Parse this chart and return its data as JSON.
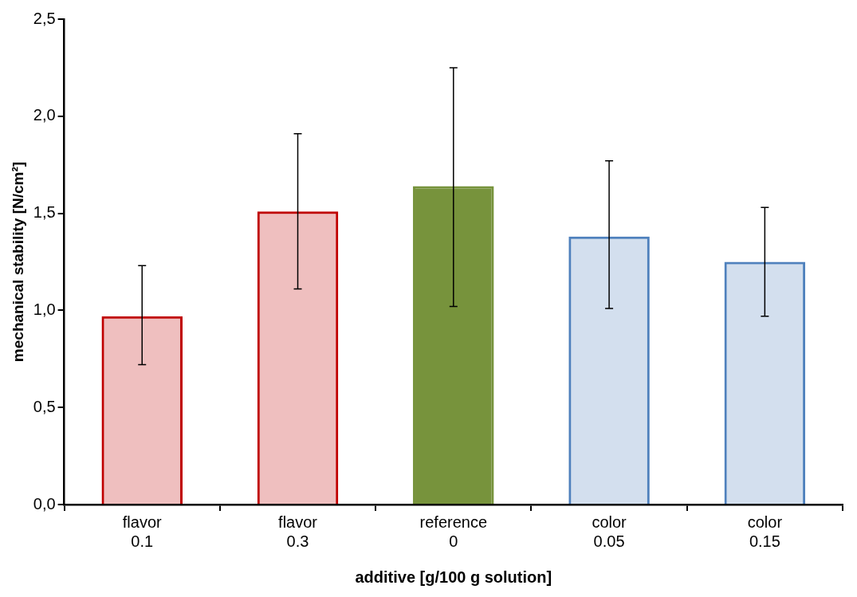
{
  "chart_data": {
    "type": "bar",
    "xlabel": "additive [g/100 g solution]",
    "ylabel": "mechanical stability [N/cm²]",
    "categories": [
      "flavor 0.1",
      "flavor 0.3",
      "reference 0",
      "color 0.05",
      "color 0.15"
    ],
    "values": [
      0.97,
      1.51,
      1.64,
      1.38,
      1.25
    ],
    "colors": [
      "#c00000",
      "#c00000",
      "#77933c",
      "#4f81bd",
      "#4f81bd"
    ],
    "errors": [
      [
        0.72,
        1.23
      ],
      [
        1.11,
        1.91
      ],
      [
        1.02,
        2.25
      ],
      [
        1.01,
        1.77
      ],
      [
        0.97,
        1.53
      ]
    ],
    "ylim": [
      0,
      2.5
    ],
    "yticks": [
      {
        "value": 0,
        "label": "0,0"
      },
      {
        "value": 0.5,
        "label": "0,5"
      },
      {
        "value": 1,
        "label": "1,0"
      },
      {
        "value": 1.5,
        "label": "1,5"
      },
      {
        "value": 2,
        "label": "2,0"
      },
      {
        "value": 2.5,
        "label": "2,5"
      }
    ],
    "grid": false,
    "legend": false
  }
}
